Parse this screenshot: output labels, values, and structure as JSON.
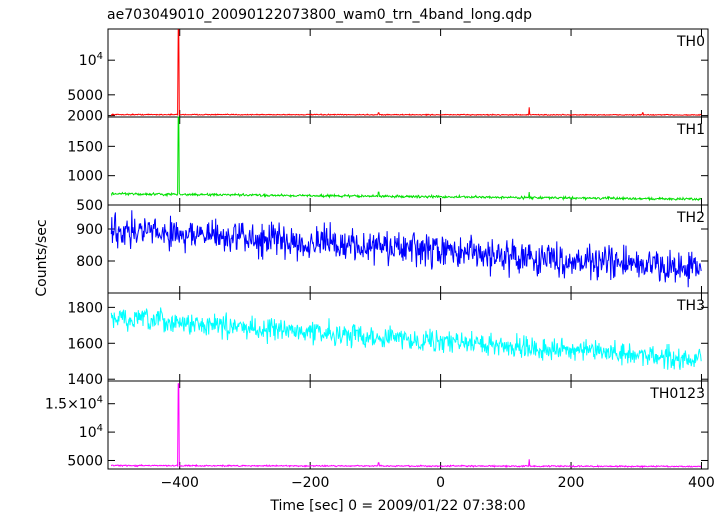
{
  "chart_data": {
    "type": "line",
    "title": "ae703049010_20090122073800_wam0_trn_4band_long.qdp",
    "xlabel": "Time [sec] 0 = 2009/01/22 07:38:00",
    "ylabel": "Counts/sec",
    "xlim": [
      -510,
      410
    ],
    "x_ticks": [
      -400,
      -200,
      0,
      200,
      400
    ],
    "panels": [
      {
        "name": "TH0",
        "color": "#ff0000",
        "ylim": [
          1800,
          14500
        ],
        "y_ticks": [
          2000,
          5000,
          10000
        ],
        "y_tick_labels": [
          "2000",
          "5000",
          "10^4"
        ],
        "baseline": [
          [
            -505,
            2150
          ],
          [
            400,
            2100
          ]
        ],
        "noise": 70,
        "spikes": [
          [
            -402,
            14400
          ],
          [
            -95,
            2400
          ],
          [
            136,
            3200
          ],
          [
            310,
            2400
          ]
        ]
      },
      {
        "name": "TH1",
        "color": "#00e000",
        "ylim": [
          500,
          2000
        ],
        "y_ticks": [
          500,
          1000,
          1500
        ],
        "y_tick_labels": [
          "500",
          "1000",
          "1500"
        ],
        "baseline": [
          [
            -505,
            690
          ],
          [
            400,
            600
          ]
        ],
        "noise": 20,
        "spikes": [
          [
            -402,
            2000
          ],
          [
            -95,
            720
          ],
          [
            136,
            720
          ]
        ]
      },
      {
        "name": "TH2",
        "color": "#0000ff",
        "ylim": [
          700,
          975
        ],
        "y_ticks": [
          800,
          900
        ],
        "y_tick_labels": [
          "800",
          "900"
        ],
        "baseline": [
          [
            -505,
            900
          ],
          [
            400,
            775
          ]
        ],
        "noise": 50,
        "spikes": []
      },
      {
        "name": "TH3",
        "color": "#00ffff",
        "ylim": [
          1390,
          1880
        ],
        "y_ticks": [
          1400,
          1600,
          1800
        ],
        "y_tick_labels": [
          "1400",
          "1600",
          "1800"
        ],
        "baseline": [
          [
            -505,
            1740
          ],
          [
            400,
            1510
          ]
        ],
        "noise": 60,
        "spikes": []
      },
      {
        "name": "TH0123",
        "color": "#ff00ff",
        "ylim": [
          3500,
          19000
        ],
        "y_ticks": [
          5000,
          10000,
          15000
        ],
        "y_tick_labels": [
          "5000",
          "10^4",
          "1.5×10^4"
        ],
        "baseline": [
          [
            -505,
            4100
          ],
          [
            400,
            3950
          ]
        ],
        "noise": 120,
        "spikes": [
          [
            -402,
            18500
          ],
          [
            -95,
            4600
          ],
          [
            136,
            5200
          ]
        ]
      }
    ],
    "grid": false,
    "legend": "none"
  }
}
